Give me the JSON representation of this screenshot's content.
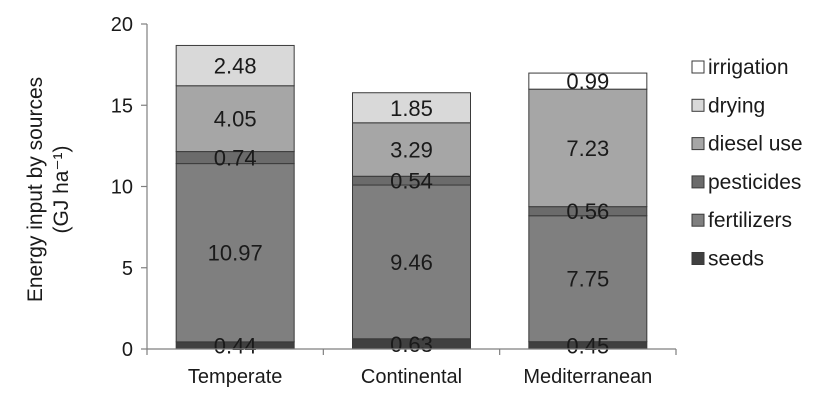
{
  "chart_data": {
    "type": "bar",
    "stacked": true,
    "title": "",
    "xlabel": "",
    "ylabel": "Energy input by sources",
    "ylabel_unit": "(GJ ha⁻¹)",
    "ylim": [
      0,
      20
    ],
    "yticks": [
      0,
      5,
      10,
      15,
      20
    ],
    "grid": false,
    "legend_position": "right",
    "categories": [
      "Temperate",
      "Continental",
      "Mediterranean"
    ],
    "series": [
      {
        "name": "seeds",
        "values": [
          0.44,
          0.63,
          0.45
        ],
        "labels": [
          "0.44",
          "0.63",
          "0.45"
        ],
        "color": "#404040"
      },
      {
        "name": "fertilizers",
        "values": [
          10.97,
          9.46,
          7.75
        ],
        "labels": [
          "10.97",
          "9.46",
          "7.75"
        ],
        "color": "#7f7f7f"
      },
      {
        "name": "pesticides",
        "values": [
          0.74,
          0.54,
          0.56
        ],
        "labels": [
          "0.74",
          "0.54",
          "0.56"
        ],
        "color": "#6b6b6b"
      },
      {
        "name": "diesel use",
        "values": [
          4.05,
          3.29,
          7.23
        ],
        "labels": [
          "4.05",
          "3.29",
          "7.23"
        ],
        "color": "#a6a6a6"
      },
      {
        "name": "drying",
        "values": [
          2.48,
          1.85,
          0
        ],
        "labels": [
          "2.48",
          "1.85",
          ""
        ],
        "color": "#d9d9d9"
      },
      {
        "name": "irrigation",
        "values": [
          0,
          0,
          0.99
        ],
        "labels": [
          "",
          "",
          "0.99"
        ],
        "color": "#ffffff"
      }
    ]
  }
}
